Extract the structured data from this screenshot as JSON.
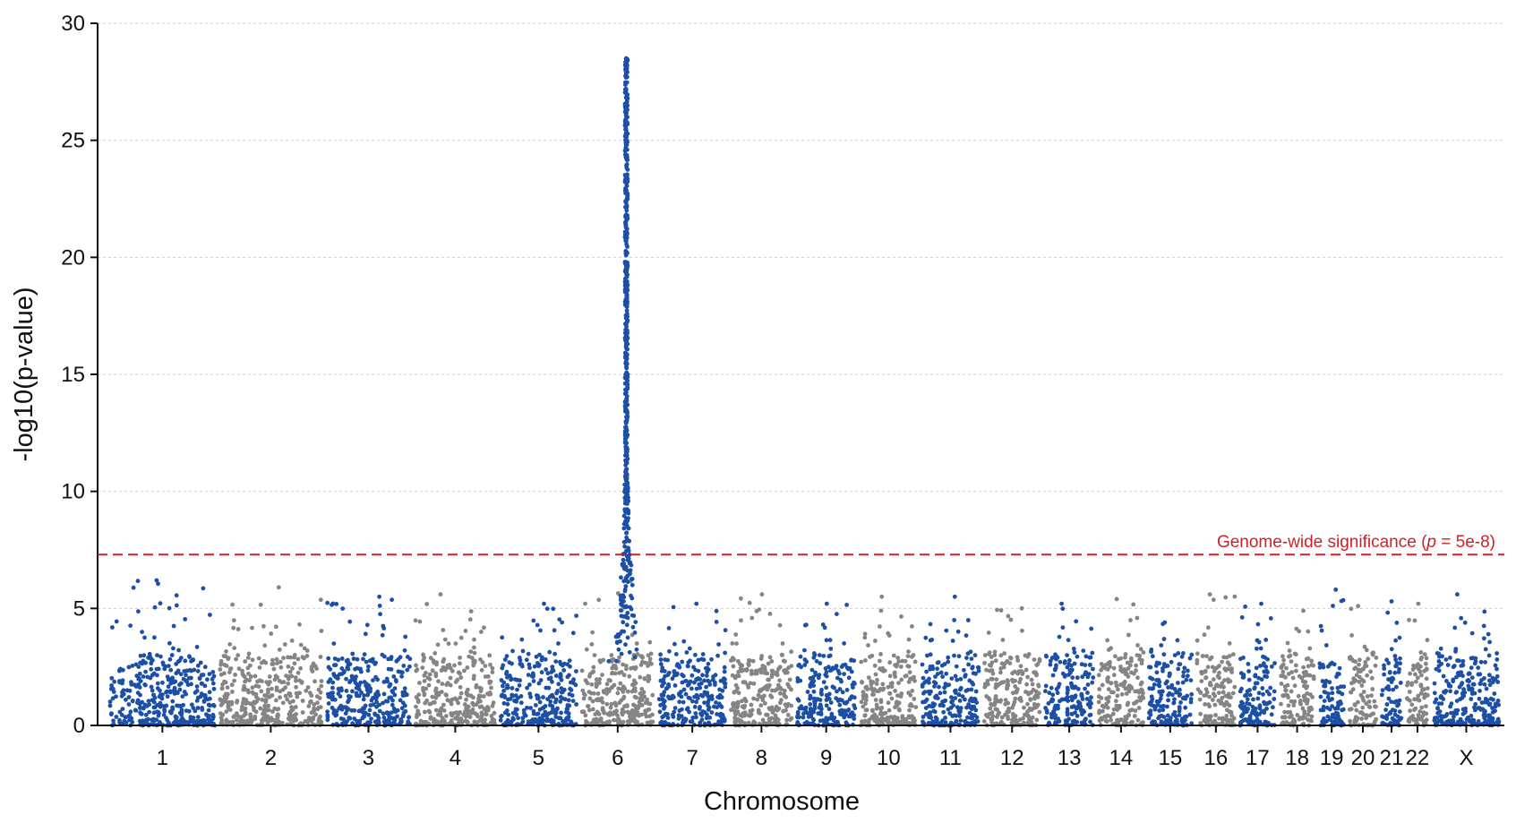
{
  "chart_data": {
    "type": "scatter",
    "subtype": "manhattan",
    "xlabel": "Chromosome",
    "ylabel": "-log10(p-value)",
    "ylim": [
      0,
      30
    ],
    "yticks": [
      0,
      5,
      10,
      15,
      20,
      25,
      30
    ],
    "grid": "horizontal dotted",
    "colors": {
      "blue": "#1c4fa6",
      "gray": "#858585",
      "threshold": "#d01f26"
    },
    "threshold": {
      "value": 7.3,
      "label_prefix": "Genome-wide significance (",
      "label_italic": "p",
      "label_suffix": " = 5e-8)"
    },
    "chromosomes": [
      {
        "label": "1",
        "peak": 6.2,
        "color": "blue"
      },
      {
        "label": "2",
        "peak": 5.9,
        "color": "gray"
      },
      {
        "label": "3",
        "peak": 5.5,
        "color": "blue"
      },
      {
        "label": "4",
        "peak": 5.6,
        "color": "gray"
      },
      {
        "label": "5",
        "peak": 5.2,
        "color": "blue"
      },
      {
        "label": "6",
        "peak": 28.5,
        "color": "gray",
        "peak_color": "blue"
      },
      {
        "label": "7",
        "peak": 5.2,
        "color": "blue"
      },
      {
        "label": "8",
        "peak": 5.6,
        "color": "gray"
      },
      {
        "label": "9",
        "peak": 5.2,
        "color": "blue"
      },
      {
        "label": "10",
        "peak": 5.5,
        "color": "gray"
      },
      {
        "label": "11",
        "peak": 5.5,
        "color": "blue"
      },
      {
        "label": "12",
        "peak": 5.0,
        "color": "gray"
      },
      {
        "label": "13",
        "peak": 5.2,
        "color": "blue"
      },
      {
        "label": "14",
        "peak": 5.4,
        "color": "gray"
      },
      {
        "label": "15",
        "peak": 4.4,
        "color": "blue"
      },
      {
        "label": "16",
        "peak": 5.6,
        "color": "gray"
      },
      {
        "label": "17",
        "peak": 5.2,
        "color": "blue"
      },
      {
        "label": "18",
        "peak": 4.9,
        "color": "gray"
      },
      {
        "label": "19",
        "peak": 5.8,
        "color": "blue"
      },
      {
        "label": "20",
        "peak": 5.1,
        "color": "gray"
      },
      {
        "label": "21",
        "peak": 5.3,
        "color": "blue"
      },
      {
        "label": "22",
        "peak": 5.2,
        "color": "gray"
      },
      {
        "label": "X",
        "peak": 5.6,
        "color": "blue"
      }
    ]
  }
}
